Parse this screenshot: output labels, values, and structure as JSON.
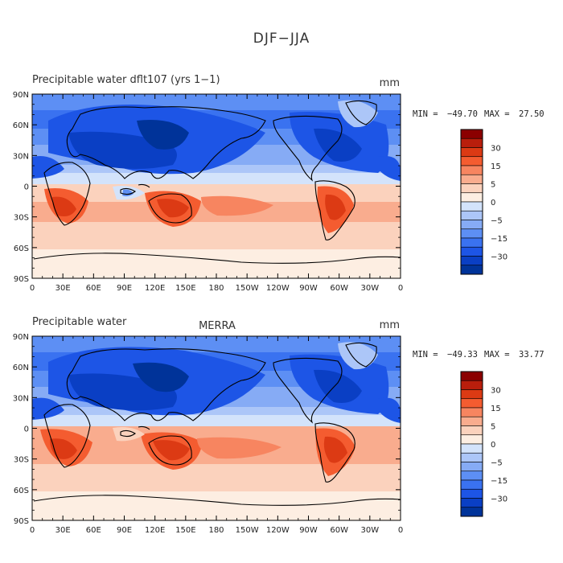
{
  "figure_title": "DJF−JJA",
  "colors": {
    "scale": [
      "#003399",
      "#0a3fc4",
      "#1d55e6",
      "#3a72f0",
      "#5d8ff4",
      "#86abf5",
      "#acc6f8",
      "#d3e3fb",
      "#fdeee2",
      "#fbd2bd",
      "#f9ac8e",
      "#f78560",
      "#f45c30",
      "#dc3a14",
      "#b91e0c",
      "#8b0000"
    ],
    "coast": "#000000"
  },
  "colorbar": {
    "ticks": [
      "30",
      "15",
      "5",
      "0",
      "−5",
      "−15",
      "−30"
    ]
  },
  "x_ticks": [
    "0",
    "30E",
    "60E",
    "90E",
    "120E",
    "150E",
    "180",
    "150W",
    "120W",
    "90W",
    "60W",
    "30W",
    "0"
  ],
  "y_ticks": [
    "90N",
    "60N",
    "30N",
    "0",
    "30S",
    "60S",
    "90S"
  ],
  "panels": [
    {
      "left_title": "Precipitable water   dflt107 (yrs 1−1)",
      "center_title": "",
      "units": "mm",
      "min_label": "MIN = ",
      "min_value": "−49.70",
      "max_label": "MAX = ",
      "max_value": "27.50",
      "min": -49.7,
      "max": 27.5
    },
    {
      "left_title": "Precipitable water",
      "center_title": "MERRA",
      "units": "mm",
      "min_label": "MIN = ",
      "min_value": "−49.33",
      "max_label": "MAX = ",
      "max_value": "33.77",
      "min": -49.33,
      "max": 33.77
    }
  ]
}
